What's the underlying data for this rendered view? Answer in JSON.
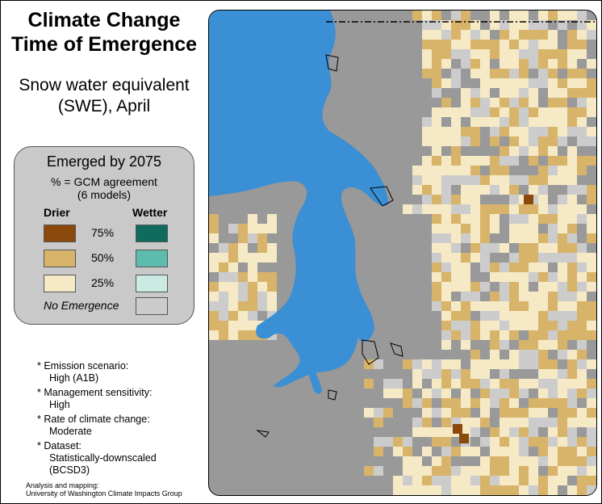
{
  "title_line1": "Climate Change",
  "title_line2": "Time of Emergence",
  "subtitle_line1": "Snow water equivalent",
  "subtitle_line2": "(SWE), April",
  "legend": {
    "title": "Emerged by 2075",
    "subtitle_line1": "% = GCM agreement",
    "subtitle_line2": "(6 models)",
    "drier_label": "Drier",
    "wetter_label": "Wetter",
    "rows": [
      {
        "pct": "75%",
        "drier_color": "#8b4a0c",
        "wetter_color": "#0f6b5e"
      },
      {
        "pct": "50%",
        "drier_color": "#d8b46a",
        "wetter_color": "#5ebcae"
      },
      {
        "pct": "25%",
        "drier_color": "#f6e9c6",
        "wetter_color": "#cbeae3"
      }
    ],
    "no_emergence_label": "No Emergence",
    "no_emergence_color": "#cccccc"
  },
  "notes": [
    {
      "label": "* Emission scenario:",
      "value": "High (A1B)"
    },
    {
      "label": "* Management sensitivity:",
      "value": "High"
    },
    {
      "label": "* Rate of climate change:",
      "value": "Moderate"
    },
    {
      "label": "* Dataset:",
      "value": "Statistically-downscaled",
      "value2": "(BCSD3)"
    }
  ],
  "credit_line1": "Analysis and mapping:",
  "credit_line2": "University of Washington Climate Impacts Group",
  "map_colors": {
    "background": "#999999",
    "water": "#3b8fd4",
    "no_emergence": "#cccccc",
    "drier_75": "#8b4a0c",
    "drier_50": "#d8b46a",
    "drier_25": "#f6e9c6"
  }
}
